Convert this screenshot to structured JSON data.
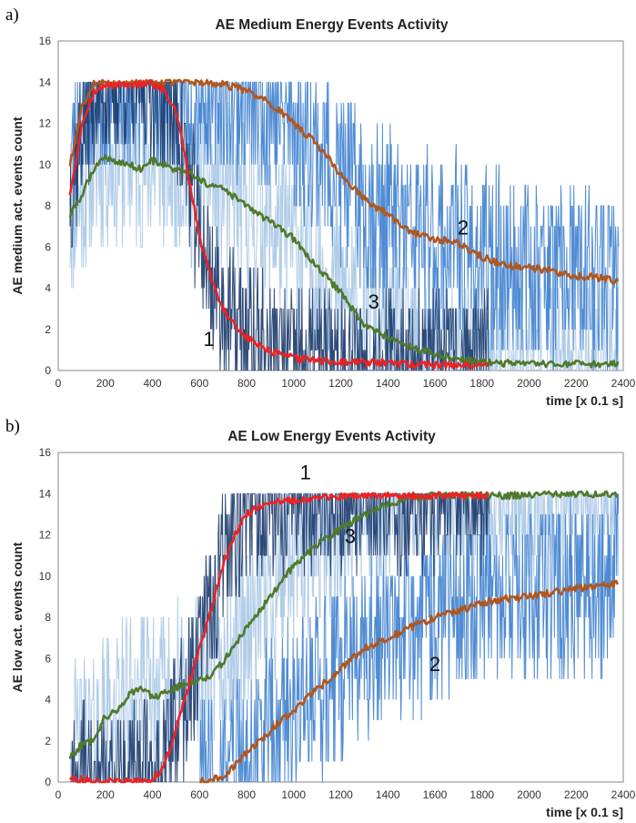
{
  "chart_data": [
    {
      "panel_letter": "a)",
      "type": "line",
      "title": "AE Medium Energy Events Activity",
      "xlabel": "time [x 0.1 s]",
      "ylabel": "AE medium act. events count",
      "xlim": [
        0,
        2400
      ],
      "ylim": [
        0,
        16
      ],
      "xticks": [
        "0",
        "200",
        "400",
        "600",
        "800",
        "1000",
        "1200",
        "1400",
        "1600",
        "1800",
        "2000",
        "2200",
        "2400"
      ],
      "yticks": [
        "0",
        "2",
        "4",
        "6",
        "8",
        "10",
        "12",
        "14",
        "16"
      ],
      "grid": false,
      "colors": {
        "raw_dark": "#1b3a6b",
        "raw_mid": "#3d7fcf",
        "raw_light": "#a9c6e6",
        "smooth_1": "#ee2222",
        "smooth_2": "#b0561c",
        "smooth_3": "#4f7a2a"
      },
      "series": [
        {
          "name": "1",
          "x": [
            50,
            80,
            100,
            150,
            200,
            250,
            300,
            350,
            400,
            450,
            500,
            530,
            560,
            600,
            650,
            700,
            750,
            800,
            900,
            1000,
            1100,
            1200,
            1300,
            1400,
            1500,
            1600,
            1700,
            1800,
            1830
          ],
          "values": [
            8.6,
            10.5,
            12,
            13.5,
            13.8,
            13.9,
            13.9,
            13.9,
            13.9,
            13.6,
            12.5,
            11,
            9,
            6.5,
            4.5,
            3,
            2.2,
            1.6,
            0.9,
            0.6,
            0.5,
            0.4,
            0.4,
            0.35,
            0.3,
            0.3,
            0.25,
            0.25,
            0.25
          ]
        },
        {
          "name": "2",
          "x": [
            50,
            80,
            100,
            150,
            200,
            300,
            400,
            500,
            600,
            700,
            800,
            900,
            1000,
            1100,
            1200,
            1300,
            1400,
            1500,
            1600,
            1700,
            1800,
            1900,
            2000,
            2100,
            2200,
            2300,
            2380
          ],
          "values": [
            10,
            11.5,
            12.8,
            13.9,
            14,
            14,
            14,
            14,
            14,
            13.9,
            13.6,
            13,
            12,
            11,
            9.5,
            8.3,
            7.6,
            6.7,
            6.4,
            6.2,
            5.5,
            5.1,
            5,
            4.8,
            4.6,
            4.5,
            4.3
          ]
        },
        {
          "name": "3",
          "x": [
            50,
            100,
            150,
            200,
            250,
            300,
            350,
            400,
            450,
            500,
            550,
            600,
            700,
            800,
            900,
            1000,
            1100,
            1200,
            1300,
            1400,
            1500,
            1600,
            1700,
            1800,
            1900,
            2000,
            2100,
            2200,
            2300,
            2380
          ],
          "values": [
            7.5,
            8.5,
            9.8,
            10.4,
            10.1,
            10,
            9.8,
            10.2,
            10,
            9.7,
            9.6,
            9.2,
            8.8,
            8,
            7.2,
            6.4,
            5,
            3.8,
            2.2,
            1.6,
            1.1,
            0.8,
            0.55,
            0.4,
            0.35,
            0.3,
            0.3,
            0.3,
            0.3,
            0.3
          ]
        }
      ],
      "labels": [
        {
          "text": "1",
          "x": 640,
          "y": 1.2
        },
        {
          "text": "2",
          "x": 1720,
          "y": 6.6
        },
        {
          "text": "3",
          "x": 1340,
          "y": 3.0
        }
      ]
    },
    {
      "panel_letter": "b)",
      "type": "line",
      "title": "AE Low Energy Events Activity",
      "xlabel": "time [x 0.1 s]",
      "ylabel": "AE low act. events count",
      "xlim": [
        0,
        2400
      ],
      "ylim": [
        0,
        16
      ],
      "xticks": [
        "0",
        "200",
        "400",
        "600",
        "800",
        "1000",
        "1200",
        "1400",
        "1600",
        "1800",
        "2000",
        "2200",
        "2400"
      ],
      "yticks": [
        "0",
        "2",
        "4",
        "6",
        "8",
        "10",
        "12",
        "14",
        "16"
      ],
      "grid": false,
      "colors": {
        "raw_dark": "#1b3a6b",
        "raw_mid": "#3d7fcf",
        "raw_light": "#a9c6e6",
        "smooth_1": "#ee2222",
        "smooth_2": "#b0561c",
        "smooth_3": "#4f7a2a"
      },
      "series": [
        {
          "name": "1",
          "x": [
            50,
            100,
            200,
            300,
            350,
            400,
            450,
            500,
            550,
            600,
            650,
            700,
            750,
            800,
            850,
            900,
            1000,
            1100,
            1200,
            1300,
            1400,
            1500,
            1600,
            1700,
            1800,
            1830
          ],
          "values": [
            0.2,
            0.1,
            0,
            0,
            0,
            0.1,
            0.8,
            2.5,
            4.5,
            6.5,
            8.5,
            10.5,
            12,
            13,
            13.4,
            13.5,
            13.7,
            13.8,
            13.85,
            13.9,
            13.9,
            13.9,
            13.9,
            13.9,
            13.9,
            13.9
          ]
        },
        {
          "name": "2",
          "x": [
            600,
            650,
            700,
            750,
            800,
            900,
            1000,
            1100,
            1200,
            1300,
            1400,
            1500,
            1600,
            1700,
            1800,
            1900,
            2000,
            2100,
            2200,
            2300,
            2380
          ],
          "values": [
            0,
            0.1,
            0.3,
            0.8,
            1.4,
            2.5,
            3.5,
            4.5,
            5.5,
            6.5,
            7,
            7.5,
            8,
            8.3,
            8.7,
            8.9,
            9,
            9.2,
            9.4,
            9.5,
            9.7
          ]
        },
        {
          "name": "3",
          "x": [
            50,
            100,
            150,
            200,
            250,
            300,
            350,
            400,
            450,
            500,
            550,
            600,
            650,
            700,
            800,
            900,
            1000,
            1100,
            1200,
            1300,
            1400,
            1500,
            1600,
            1700,
            1800,
            1900,
            2000,
            2100,
            2200,
            2300,
            2380
          ],
          "values": [
            1.2,
            1.8,
            2.1,
            3.2,
            3.4,
            4.3,
            4.6,
            4.1,
            4.3,
            4.6,
            4.8,
            5,
            5.2,
            5.8,
            7.5,
            9,
            10.5,
            11.5,
            12.3,
            13,
            13.5,
            13.8,
            13.9,
            13.9,
            13.9,
            13.9,
            13.95,
            14,
            14,
            14,
            13.9
          ]
        }
      ],
      "labels": [
        {
          "text": "1",
          "x": 1050,
          "y": 14.7
        },
        {
          "text": "2",
          "x": 1600,
          "y": 5.4
        },
        {
          "text": "3",
          "x": 1240,
          "y": 11.6
        }
      ]
    }
  ]
}
